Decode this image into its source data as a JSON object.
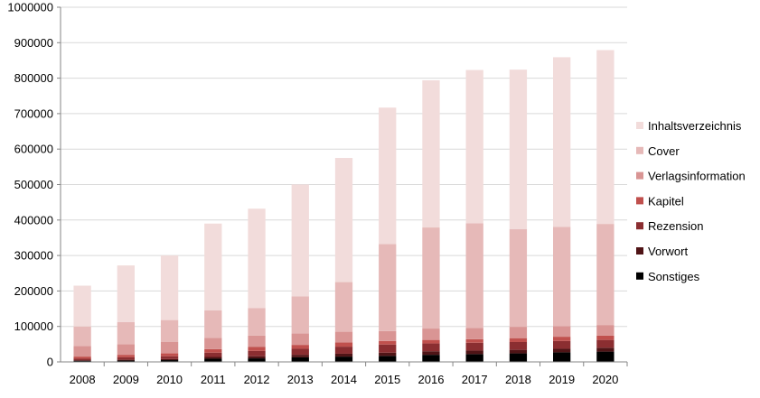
{
  "chart_data": {
    "type": "bar",
    "stacked": true,
    "categories": [
      "2008",
      "2009",
      "2010",
      "2011",
      "2012",
      "2013",
      "2014",
      "2015",
      "2016",
      "2017",
      "2018",
      "2019",
      "2020"
    ],
    "ylim": [
      0,
      1000000
    ],
    "yticks": [
      0,
      100000,
      200000,
      300000,
      400000,
      500000,
      600000,
      700000,
      800000,
      900000,
      1000000
    ],
    "ytick_labels": [
      "0",
      "100000",
      "200000",
      "300000",
      "400000",
      "500000",
      "600000",
      "700000",
      "800000",
      "900000",
      "1000000"
    ],
    "grid": true,
    "legend_position": "right",
    "series": [
      {
        "name": "Sonstiges",
        "color": "#000000",
        "values": [
          3000,
          4000,
          5000,
          9000,
          10000,
          13000,
          15000,
          17000,
          20000,
          22000,
          24000,
          27000,
          29000
        ]
      },
      {
        "name": "Vorwort",
        "color": "#4f1416",
        "values": [
          2000,
          2000,
          3000,
          5000,
          6000,
          7000,
          8000,
          9000,
          10000,
          10000,
          10000,
          10000,
          11000
        ]
      },
      {
        "name": "Rezension",
        "color": "#8b2e31",
        "values": [
          4000,
          7000,
          8000,
          12000,
          15000,
          17000,
          20000,
          23000,
          22000,
          22000,
          22000,
          22000,
          22000
        ]
      },
      {
        "name": "Kapitel",
        "color": "#c0504d",
        "values": [
          6000,
          7000,
          8000,
          10000,
          11000,
          11000,
          12000,
          10000,
          10000,
          10000,
          11000,
          12000,
          12000
        ]
      },
      {
        "name": "Verlagsinformation",
        "color": "#d99594",
        "values": [
          30000,
          30000,
          32000,
          32000,
          32000,
          32000,
          30000,
          28000,
          32000,
          32000,
          32000,
          30000,
          30000
        ]
      },
      {
        "name": "Cover",
        "color": "#e6b9b8",
        "values": [
          55000,
          62000,
          62000,
          77000,
          78000,
          105000,
          140000,
          245000,
          285000,
          295000,
          275000,
          280000,
          285000
        ]
      },
      {
        "name": "Inhaltsverzeichnis",
        "color": "#f2dcdb",
        "values": [
          115000,
          160000,
          182000,
          245000,
          280000,
          315000,
          350000,
          385000,
          415000,
          432000,
          450000,
          478000,
          490000
        ]
      }
    ]
  }
}
